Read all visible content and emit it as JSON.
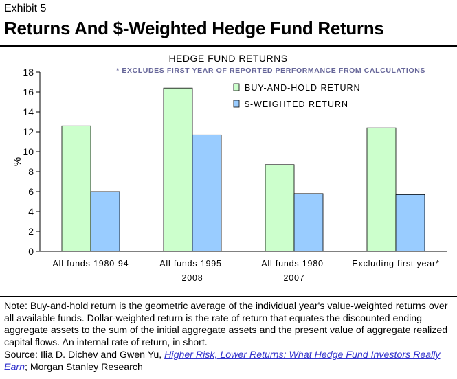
{
  "header": {
    "exhibit": "Exhibit 5",
    "title": "Returns And $-Weighted Hedge Fund Returns"
  },
  "chart_data": {
    "type": "bar",
    "title": "HEDGE FUND RETURNS",
    "annotation": "* EXCLUDES FIRST YEAR OF REPORTED PERFORMANCE FROM CALCULATIONS",
    "ylabel": "%",
    "xlabel": "",
    "ylim": [
      0,
      18
    ],
    "yticks": [
      0,
      2,
      4,
      6,
      8,
      10,
      12,
      14,
      16,
      18
    ],
    "categories": [
      [
        "All funds 1980-94"
      ],
      [
        "All funds 1995-",
        "2008"
      ],
      [
        "All funds 1980-",
        "2007"
      ],
      [
        "Excluding first year*"
      ]
    ],
    "series": [
      {
        "name": "BUY-AND-HOLD RETURN",
        "color": "#ccffcc",
        "stroke": "#000000",
        "values": [
          12.6,
          16.4,
          8.7,
          12.4
        ]
      },
      {
        "name": "$-WEIGHTED RETURN",
        "color": "#99ccff",
        "stroke": "#000000",
        "values": [
          6.0,
          11.7,
          5.8,
          5.7
        ]
      }
    ],
    "grid": false,
    "legend_position": "top-right",
    "annotation_color": "#666699"
  },
  "note": {
    "text": "Note: Buy-and-hold return is the geometric average of the individual year's value-weighted returns over all available funds. Dollar-weighted return is the rate of return that equates the discounted ending aggregate assets to the sum of the initial aggregate assets and the present value of aggregate realized capital flows.  An internal rate of return, in short."
  },
  "source": {
    "prefix": "Source: Ilia D. Dichev and Gwen Yu, ",
    "link": "Higher Risk, Lower Returns: What Hedge Fund Investors Really Earn",
    "suffix": "; Morgan Stanley Research"
  }
}
